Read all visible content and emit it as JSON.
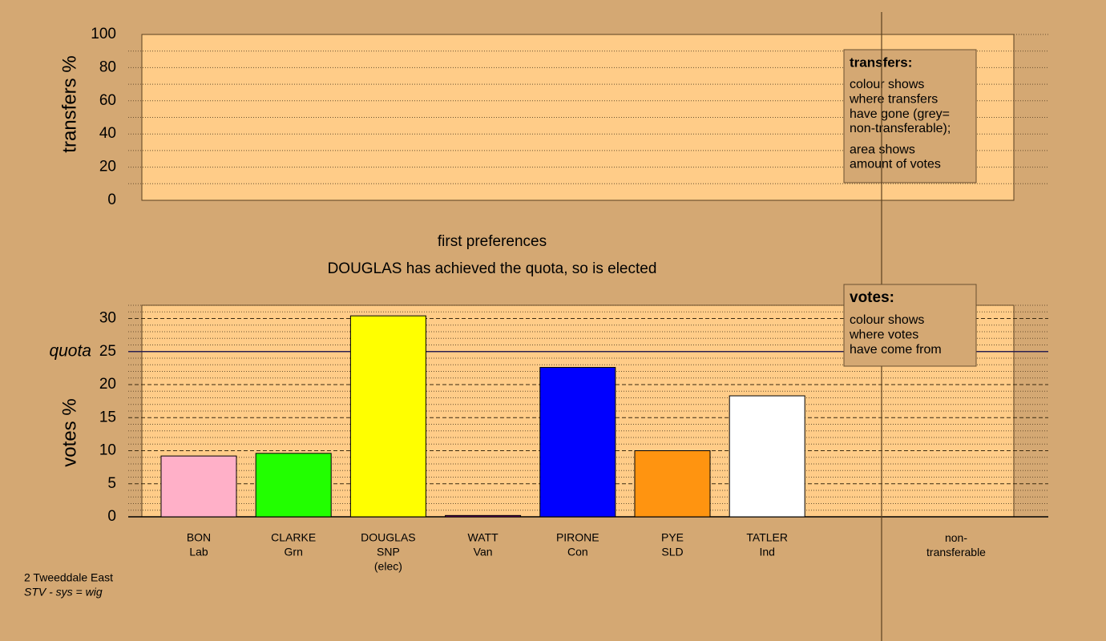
{
  "chart_data": [
    {
      "type": "bar",
      "ylabel": "transfers %",
      "ylim": [
        0,
        100
      ],
      "yticks": [
        0,
        20,
        40,
        60,
        80,
        100
      ],
      "minor_step": 10,
      "legend": {
        "title": "transfers:",
        "lines": [
          "colour shows",
          "where transfers",
          "have gone (grey=",
          "non-transferable);"
        ],
        "lines2": [
          "area shows",
          "amount of votes"
        ]
      }
    },
    {
      "type": "bar",
      "title": "first preferences",
      "subtitle": "DOUGLAS has achieved the quota, so is elected",
      "ylabel": "votes %",
      "ylim": [
        0,
        32
      ],
      "yticks": [
        0,
        5,
        10,
        15,
        20,
        25,
        30
      ],
      "minor_step": 1,
      "quota": {
        "label": "quota",
        "value": 25
      },
      "categories": [
        "BON",
        "CLARKE",
        "DOUGLAS",
        "WATT",
        "PIRONE",
        "PYE",
        "TATLER"
      ],
      "parties": [
        "Lab",
        "Grn",
        "SNP",
        "Van",
        "Con",
        "SLD",
        "Ind"
      ],
      "notes": [
        null,
        null,
        "(elec)",
        null,
        null,
        null,
        null
      ],
      "values": [
        9.2,
        9.6,
        30.4,
        0.2,
        22.6,
        10.0,
        18.3
      ],
      "colors": [
        "#ffb0c8",
        "#22ff00",
        "#ffff00",
        "#800080",
        "#0000ff",
        "#ff9410",
        "#ffffff"
      ],
      "extra_column": "non-transferable",
      "legend": {
        "title": "votes:",
        "lines": [
          "colour shows",
          "where votes",
          "have come from"
        ]
      }
    }
  ],
  "footer": {
    "line1": "2 Tweeddale East",
    "line2": "STV - sys = wig"
  }
}
